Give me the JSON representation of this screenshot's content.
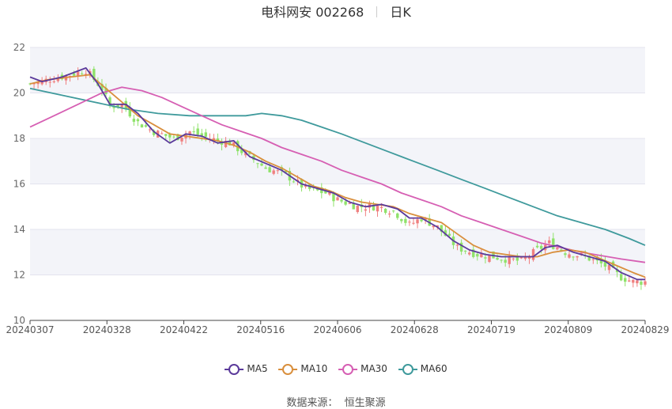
{
  "header": {
    "title": "电科网安 002268",
    "period": "日K"
  },
  "source": {
    "label": "数据来源：",
    "name": "恒生聚源"
  },
  "chart_data": {
    "type": "candlestick",
    "title": "电科网安 002268",
    "period": "日K",
    "ylim": [
      10,
      22
    ],
    "y_ticks": [
      "10",
      "12",
      "14",
      "16",
      "18",
      "20",
      "22"
    ],
    "x_ticks": [
      "20240307",
      "20240328",
      "20240422",
      "20240516",
      "20240606",
      "20240628",
      "20240719",
      "20240809",
      "20240829"
    ],
    "colors": {
      "up": "#ef7f7f",
      "down": "#8fe26a",
      "MA5": "#5b3a9b",
      "MA10": "#d98f3d",
      "MA30": "#d65fb3",
      "MA60": "#3f9a9c"
    },
    "legend": [
      {
        "name": "MA5",
        "color": "#5b3a9b"
      },
      {
        "name": "MA10",
        "color": "#d98f3d"
      },
      {
        "name": "MA30",
        "color": "#d65fb3"
      },
      {
        "name": "MA60",
        "color": "#3f9a9c"
      }
    ],
    "close_trend": [
      [
        0,
        20.4
      ],
      [
        5,
        20.6
      ],
      [
        10,
        20.8
      ],
      [
        14,
        21.0
      ],
      [
        18,
        20.2
      ],
      [
        20,
        19.4
      ],
      [
        23,
        19.5
      ],
      [
        27,
        18.7
      ],
      [
        31,
        18.3
      ],
      [
        36,
        18.0
      ],
      [
        40,
        18.3
      ],
      [
        45,
        18.0
      ],
      [
        50,
        17.8
      ],
      [
        54,
        17.3
      ],
      [
        59,
        16.7
      ],
      [
        64,
        16.4
      ],
      [
        69,
        15.8
      ],
      [
        74,
        15.6
      ],
      [
        77,
        15.3
      ],
      [
        82,
        15.0
      ],
      [
        87,
        15.0
      ],
      [
        91,
        14.8
      ],
      [
        95,
        14.2
      ],
      [
        98,
        14.5
      ],
      [
        102,
        14.1
      ],
      [
        107,
        13.2
      ],
      [
        112,
        12.9
      ],
      [
        116,
        12.8
      ],
      [
        119,
        12.7
      ],
      [
        123,
        12.6
      ],
      [
        127,
        13.1
      ],
      [
        130,
        13.4
      ],
      [
        134,
        13.0
      ],
      [
        139,
        12.8
      ],
      [
        144,
        12.4
      ],
      [
        148,
        11.9
      ],
      [
        151,
        11.7
      ],
      [
        154,
        11.7
      ]
    ],
    "ma": {
      "MA5": [
        [
          0,
          20.7
        ],
        [
          3,
          20.5
        ],
        [
          8,
          20.7
        ],
        [
          14,
          21.1
        ],
        [
          17,
          20.4
        ],
        [
          20,
          19.5
        ],
        [
          24,
          19.5
        ],
        [
          27,
          19.1
        ],
        [
          31,
          18.3
        ],
        [
          35,
          17.8
        ],
        [
          39,
          18.2
        ],
        [
          43,
          18.1
        ],
        [
          47,
          17.8
        ],
        [
          51,
          17.9
        ],
        [
          55,
          17.2
        ],
        [
          59,
          16.9
        ],
        [
          63,
          16.6
        ],
        [
          68,
          16.0
        ],
        [
          72,
          15.8
        ],
        [
          76,
          15.6
        ],
        [
          80,
          15.2
        ],
        [
          84,
          15.0
        ],
        [
          88,
          15.1
        ],
        [
          92,
          14.9
        ],
        [
          95,
          14.5
        ],
        [
          98,
          14.5
        ],
        [
          102,
          14.1
        ],
        [
          106,
          13.5
        ],
        [
          110,
          13.1
        ],
        [
          114,
          12.9
        ],
        [
          118,
          12.8
        ],
        [
          122,
          12.8
        ],
        [
          126,
          12.8
        ],
        [
          129,
          13.2
        ],
        [
          132,
          13.3
        ],
        [
          136,
          13.0
        ],
        [
          140,
          12.8
        ],
        [
          144,
          12.6
        ],
        [
          148,
          12.1
        ],
        [
          152,
          11.8
        ],
        [
          154,
          11.8
        ]
      ],
      "MA10": [
        [
          0,
          20.4
        ],
        [
          5,
          20.6
        ],
        [
          10,
          20.7
        ],
        [
          15,
          20.8
        ],
        [
          19,
          20.2
        ],
        [
          23,
          19.6
        ],
        [
          27,
          19.0
        ],
        [
          31,
          18.6
        ],
        [
          35,
          18.2
        ],
        [
          39,
          18.1
        ],
        [
          43,
          18.0
        ],
        [
          47,
          17.9
        ],
        [
          51,
          17.7
        ],
        [
          55,
          17.4
        ],
        [
          59,
          17.0
        ],
        [
          63,
          16.7
        ],
        [
          67,
          16.3
        ],
        [
          71,
          15.9
        ],
        [
          75,
          15.7
        ],
        [
          79,
          15.4
        ],
        [
          83,
          15.2
        ],
        [
          87,
          15.1
        ],
        [
          91,
          15.0
        ],
        [
          95,
          14.7
        ],
        [
          99,
          14.5
        ],
        [
          103,
          14.3
        ],
        [
          107,
          13.8
        ],
        [
          111,
          13.3
        ],
        [
          115,
          13.0
        ],
        [
          119,
          12.9
        ],
        [
          123,
          12.8
        ],
        [
          127,
          12.8
        ],
        [
          131,
          13.0
        ],
        [
          135,
          13.1
        ],
        [
          139,
          13.0
        ],
        [
          143,
          12.7
        ],
        [
          147,
          12.4
        ],
        [
          151,
          12.1
        ],
        [
          154,
          11.9
        ]
      ],
      "MA30": [
        [
          0,
          18.5
        ],
        [
          6,
          19.0
        ],
        [
          12,
          19.5
        ],
        [
          18,
          20.0
        ],
        [
          23,
          20.25
        ],
        [
          28,
          20.1
        ],
        [
          33,
          19.8
        ],
        [
          38,
          19.4
        ],
        [
          43,
          19.0
        ],
        [
          48,
          18.6
        ],
        [
          53,
          18.3
        ],
        [
          58,
          18.0
        ],
        [
          63,
          17.6
        ],
        [
          68,
          17.3
        ],
        [
          73,
          17.0
        ],
        [
          78,
          16.6
        ],
        [
          83,
          16.3
        ],
        [
          88,
          16.0
        ],
        [
          93,
          15.6
        ],
        [
          98,
          15.3
        ],
        [
          103,
          15.0
        ],
        [
          108,
          14.6
        ],
        [
          113,
          14.3
        ],
        [
          118,
          14.0
        ],
        [
          123,
          13.7
        ],
        [
          128,
          13.4
        ],
        [
          133,
          13.2
        ],
        [
          138,
          13.0
        ],
        [
          143,
          12.85
        ],
        [
          148,
          12.7
        ],
        [
          154,
          12.55
        ]
      ],
      "MA60": [
        [
          0,
          20.2
        ],
        [
          8,
          19.9
        ],
        [
          16,
          19.6
        ],
        [
          24,
          19.3
        ],
        [
          32,
          19.1
        ],
        [
          40,
          19.0
        ],
        [
          48,
          19.0
        ],
        [
          54,
          19.0
        ],
        [
          58,
          19.1
        ],
        [
          63,
          19.0
        ],
        [
          68,
          18.8
        ],
        [
          73,
          18.5
        ],
        [
          78,
          18.2
        ],
        [
          84,
          17.8
        ],
        [
          90,
          17.4
        ],
        [
          96,
          17.0
        ],
        [
          102,
          16.6
        ],
        [
          108,
          16.2
        ],
        [
          114,
          15.8
        ],
        [
          120,
          15.4
        ],
        [
          126,
          15.0
        ],
        [
          132,
          14.6
        ],
        [
          138,
          14.3
        ],
        [
          144,
          14.0
        ],
        [
          150,
          13.6
        ],
        [
          154,
          13.3
        ]
      ]
    }
  }
}
